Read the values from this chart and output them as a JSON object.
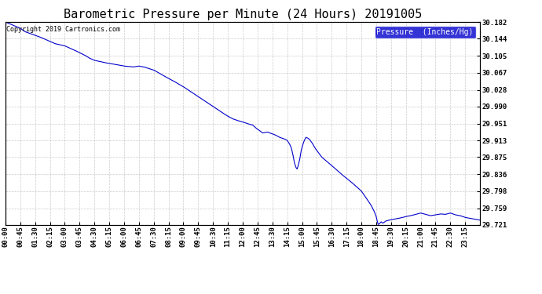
{
  "title": "Barometric Pressure per Minute (24 Hours) 20191005",
  "copyright": "Copyright 2019 Cartronics.com",
  "legend_label": "Pressure  (Inches/Hg)",
  "yticks": [
    29.721,
    29.759,
    29.798,
    29.836,
    29.875,
    29.913,
    29.951,
    29.99,
    30.028,
    30.067,
    30.105,
    30.144,
    30.182
  ],
  "ymin": 29.721,
  "ymax": 30.182,
  "line_color": "#0000CC",
  "background_color": "#FFFFFF",
  "grid_color": "#AAAAAA",
  "title_fontsize": 11,
  "tick_fontsize": 6.5,
  "copyright_fontsize": 6,
  "legend_fontsize": 7,
  "xtick_labels": [
    "00:00",
    "00:45",
    "01:30",
    "02:15",
    "03:00",
    "03:45",
    "04:30",
    "05:15",
    "06:00",
    "06:45",
    "07:30",
    "08:15",
    "09:00",
    "09:45",
    "10:30",
    "11:15",
    "12:00",
    "12:45",
    "13:30",
    "14:15",
    "15:00",
    "15:45",
    "16:30",
    "17:15",
    "18:00",
    "18:45",
    "19:30",
    "20:15",
    "21:00",
    "21:45",
    "22:30",
    "23:15"
  ],
  "pressure_keypoints": [
    [
      0,
      30.182
    ],
    [
      45,
      30.168
    ],
    [
      60,
      30.16
    ],
    [
      90,
      30.152
    ],
    [
      105,
      30.148
    ],
    [
      120,
      30.143
    ],
    [
      135,
      30.138
    ],
    [
      150,
      30.133
    ],
    [
      180,
      30.128
    ],
    [
      210,
      30.118
    ],
    [
      240,
      30.107
    ],
    [
      255,
      30.1
    ],
    [
      270,
      30.095
    ],
    [
      300,
      30.09
    ],
    [
      330,
      30.086
    ],
    [
      360,
      30.082
    ],
    [
      390,
      30.08
    ],
    [
      405,
      30.082
    ],
    [
      420,
      30.08
    ],
    [
      450,
      30.073
    ],
    [
      480,
      30.06
    ],
    [
      510,
      30.048
    ],
    [
      540,
      30.035
    ],
    [
      570,
      30.02
    ],
    [
      600,
      30.005
    ],
    [
      630,
      29.99
    ],
    [
      660,
      29.975
    ],
    [
      675,
      29.968
    ],
    [
      690,
      29.962
    ],
    [
      705,
      29.958
    ],
    [
      720,
      29.955
    ],
    [
      735,
      29.951
    ],
    [
      750,
      29.948
    ],
    [
      762,
      29.94
    ],
    [
      772,
      29.935
    ],
    [
      780,
      29.93
    ],
    [
      795,
      29.932
    ],
    [
      810,
      29.928
    ],
    [
      820,
      29.925
    ],
    [
      832,
      29.92
    ],
    [
      840,
      29.918
    ],
    [
      848,
      29.916
    ],
    [
      855,
      29.913
    ],
    [
      862,
      29.905
    ],
    [
      868,
      29.895
    ],
    [
      872,
      29.882
    ],
    [
      877,
      29.862
    ],
    [
      882,
      29.851
    ],
    [
      885,
      29.848
    ],
    [
      888,
      29.855
    ],
    [
      893,
      29.87
    ],
    [
      898,
      29.892
    ],
    [
      903,
      29.905
    ],
    [
      907,
      29.913
    ],
    [
      912,
      29.92
    ],
    [
      918,
      29.918
    ],
    [
      923,
      29.915
    ],
    [
      930,
      29.908
    ],
    [
      940,
      29.895
    ],
    [
      960,
      29.875
    ],
    [
      990,
      29.856
    ],
    [
      1020,
      29.836
    ],
    [
      1050,
      29.818
    ],
    [
      1065,
      29.808
    ],
    [
      1080,
      29.798
    ],
    [
      1095,
      29.782
    ],
    [
      1110,
      29.765
    ],
    [
      1120,
      29.75
    ],
    [
      1125,
      29.74
    ],
    [
      1128,
      29.73
    ],
    [
      1131,
      29.722
    ],
    [
      1135,
      29.724
    ],
    [
      1140,
      29.728
    ],
    [
      1145,
      29.725
    ],
    [
      1155,
      29.73
    ],
    [
      1165,
      29.732
    ],
    [
      1185,
      29.735
    ],
    [
      1200,
      29.737
    ],
    [
      1215,
      29.74
    ],
    [
      1230,
      29.742
    ],
    [
      1245,
      29.745
    ],
    [
      1260,
      29.748
    ],
    [
      1275,
      29.745
    ],
    [
      1290,
      29.742
    ],
    [
      1305,
      29.744
    ],
    [
      1320,
      29.746
    ],
    [
      1335,
      29.745
    ],
    [
      1350,
      29.748
    ],
    [
      1365,
      29.744
    ],
    [
      1380,
      29.742
    ],
    [
      1395,
      29.738
    ],
    [
      1410,
      29.736
    ],
    [
      1425,
      29.734
    ],
    [
      1439,
      29.732
    ]
  ]
}
